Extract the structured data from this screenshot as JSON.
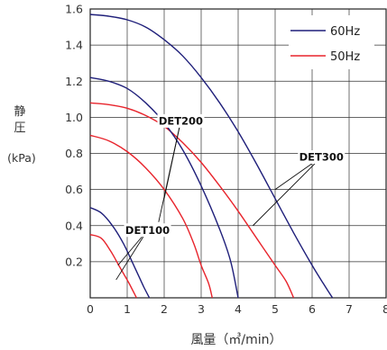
{
  "chart_data": {
    "type": "line",
    "xlabel": "風量（㎥/min）",
    "ylabel_lines": [
      "静",
      "圧"
    ],
    "yunit": "(kPa)",
    "xlim": [
      0,
      8
    ],
    "ylim": [
      0,
      1.6
    ],
    "x_ticks": [
      {
        "v": 0,
        "label": "0"
      },
      {
        "v": 1,
        "label": "1"
      },
      {
        "v": 2,
        "label": "2"
      },
      {
        "v": 3,
        "label": "3"
      },
      {
        "v": 4,
        "label": "4"
      },
      {
        "v": 5,
        "label": "5"
      },
      {
        "v": 6,
        "label": "6"
      },
      {
        "v": 7,
        "label": "7"
      },
      {
        "v": 8,
        "label": "8"
      }
    ],
    "y_ticks": [
      {
        "v": 0.2,
        "label": "0.2"
      },
      {
        "v": 0.4,
        "label": "0.4"
      },
      {
        "v": 0.6,
        "label": "0.6"
      },
      {
        "v": 0.8,
        "label": "0.8"
      },
      {
        "v": 1.0,
        "label": "1.0"
      },
      {
        "v": 1.2,
        "label": "1.2"
      },
      {
        "v": 1.4,
        "label": "1.4"
      },
      {
        "v": 1.6,
        "label": "1.6"
      }
    ],
    "grid": true,
    "legend": {
      "position": "top-right",
      "entries": [
        {
          "label": "60Hz",
          "color": "#1f1f7a"
        },
        {
          "label": "50Hz",
          "color": "#e8242c"
        }
      ]
    },
    "series": [
      {
        "model": "DET300",
        "freq": "60Hz",
        "color": "#1f1f7a",
        "points": [
          [
            0,
            1.57
          ],
          [
            0.5,
            1.56
          ],
          [
            1,
            1.54
          ],
          [
            1.5,
            1.5
          ],
          [
            2,
            1.43
          ],
          [
            2.5,
            1.34
          ],
          [
            3,
            1.22
          ],
          [
            3.5,
            1.08
          ],
          [
            4,
            0.92
          ],
          [
            4.5,
            0.74
          ],
          [
            5,
            0.55
          ],
          [
            5.5,
            0.36
          ],
          [
            6,
            0.18
          ],
          [
            6.3,
            0.08
          ],
          [
            6.55,
            0
          ]
        ]
      },
      {
        "model": "DET300",
        "freq": "50Hz",
        "color": "#e8242c",
        "points": [
          [
            0,
            1.08
          ],
          [
            0.5,
            1.07
          ],
          [
            1,
            1.05
          ],
          [
            1.5,
            1.01
          ],
          [
            2,
            0.95
          ],
          [
            2.5,
            0.86
          ],
          [
            3,
            0.75
          ],
          [
            3.5,
            0.62
          ],
          [
            4,
            0.48
          ],
          [
            4.5,
            0.33
          ],
          [
            5,
            0.18
          ],
          [
            5.3,
            0.09
          ],
          [
            5.5,
            0
          ]
        ]
      },
      {
        "model": "DET200",
        "freq": "60Hz",
        "color": "#1f1f7a",
        "points": [
          [
            0,
            1.22
          ],
          [
            0.5,
            1.2
          ],
          [
            1,
            1.16
          ],
          [
            1.5,
            1.08
          ],
          [
            2,
            0.97
          ],
          [
            2.5,
            0.82
          ],
          [
            3,
            0.62
          ],
          [
            3.5,
            0.38
          ],
          [
            3.8,
            0.2
          ],
          [
            4,
            0
          ]
        ]
      },
      {
        "model": "DET200",
        "freq": "50Hz",
        "color": "#e8242c",
        "points": [
          [
            0,
            0.9
          ],
          [
            0.5,
            0.87
          ],
          [
            1,
            0.81
          ],
          [
            1.5,
            0.72
          ],
          [
            2,
            0.6
          ],
          [
            2.5,
            0.44
          ],
          [
            2.8,
            0.3
          ],
          [
            3,
            0.18
          ],
          [
            3.2,
            0.08
          ],
          [
            3.3,
            0
          ]
        ]
      },
      {
        "model": "DET100",
        "freq": "60Hz",
        "color": "#1f1f7a",
        "points": [
          [
            0,
            0.5
          ],
          [
            0.3,
            0.47
          ],
          [
            0.6,
            0.4
          ],
          [
            0.9,
            0.3
          ],
          [
            1.2,
            0.17
          ],
          [
            1.45,
            0.06
          ],
          [
            1.6,
            0
          ]
        ]
      },
      {
        "model": "DET100",
        "freq": "50Hz",
        "color": "#e8242c",
        "points": [
          [
            0,
            0.35
          ],
          [
            0.3,
            0.33
          ],
          [
            0.55,
            0.26
          ],
          [
            0.8,
            0.17
          ],
          [
            1.05,
            0.08
          ],
          [
            1.25,
            0
          ]
        ]
      }
    ],
    "annotations": [
      {
        "text": "DET300",
        "label_at": [
          6.25,
          0.78
        ],
        "lines_to": [
          [
            5.0,
            0.6
          ],
          [
            4.4,
            0.4
          ]
        ]
      },
      {
        "text": "DET200",
        "label_at": [
          2.45,
          0.98
        ],
        "lines_to": [
          [
            2.0,
            0.55
          ],
          [
            1.85,
            0.42
          ]
        ]
      },
      {
        "text": "DET100",
        "label_at": [
          1.55,
          0.375
        ],
        "lines_to": [
          [
            0.75,
            0.18
          ],
          [
            0.7,
            0.1
          ]
        ]
      }
    ]
  }
}
